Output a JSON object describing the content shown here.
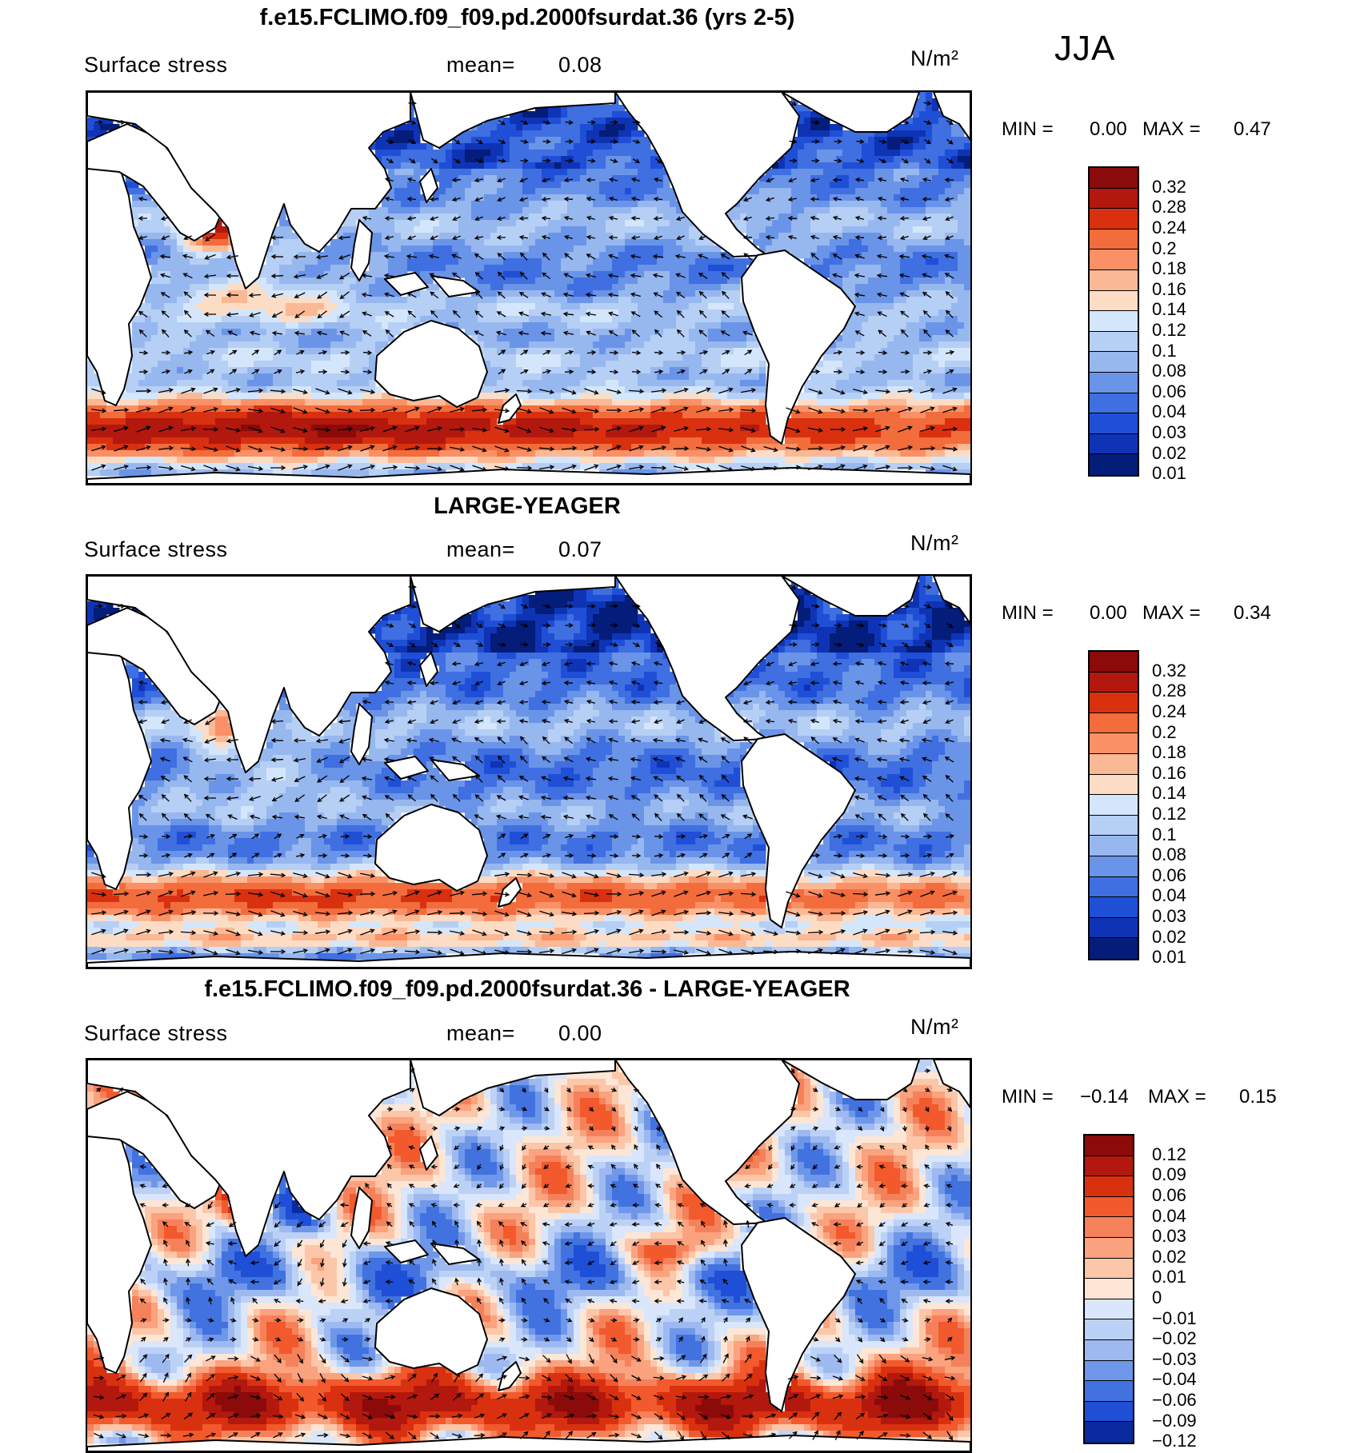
{
  "season": "JJA",
  "panels": [
    {
      "title": "f.e15.FCLIMO.f09_f09.pd.2000fsurdat.36 (yrs 2-5)",
      "field": "Surface stress",
      "mean_label": "mean=",
      "mean_value": "0.08",
      "units": "N/m²",
      "min_label": "MIN =",
      "min_value": "0.00",
      "max_label": "MAX =",
      "max_value": "0.47",
      "colorbar_labels": [
        "0.32",
        "0.28",
        "0.24",
        "0.2",
        "0.18",
        "0.16",
        "0.14",
        "0.12",
        "0.1",
        "0.08",
        "0.06",
        "0.04",
        "0.03",
        "0.02",
        "0.01"
      ],
      "colors": [
        "#8b0a0a",
        "#b2180e",
        "#d93110",
        "#f26c3c",
        "#fa9066",
        "#fbb894",
        "#fddcc5",
        "#d4e6fb",
        "#b6cff5",
        "#97b7ef",
        "#6a94e8",
        "#3f6fe0",
        "#1f4fd6",
        "#0e34b5",
        "#041c7a"
      ],
      "pattern": "mean"
    },
    {
      "title": "LARGE-YEAGER",
      "field": "Surface stress",
      "mean_label": "mean=",
      "mean_value": "0.07",
      "units": "N/m²",
      "min_label": "MIN =",
      "min_value": "0.00",
      "max_label": "MAX =",
      "max_value": "0.34",
      "colorbar_labels": [
        "0.32",
        "0.28",
        "0.24",
        "0.2",
        "0.18",
        "0.16",
        "0.14",
        "0.12",
        "0.1",
        "0.08",
        "0.06",
        "0.04",
        "0.03",
        "0.02",
        "0.01"
      ],
      "colors": [
        "#8b0a0a",
        "#b2180e",
        "#d93110",
        "#f26c3c",
        "#fa9066",
        "#fbb894",
        "#fddcc5",
        "#d4e6fb",
        "#b6cff5",
        "#97b7ef",
        "#6a94e8",
        "#3f6fe0",
        "#1f4fd6",
        "#0e34b5",
        "#041c7a"
      ],
      "pattern": "obs"
    },
    {
      "title": "f.e15.FCLIMO.f09_f09.pd.2000fsurdat.36 - LARGE-YEAGER",
      "field": "Surface stress",
      "mean_label": "mean=",
      "mean_value": "0.00",
      "units": "N/m²",
      "min_label": "MIN =",
      "min_value": "−0.14",
      "max_label": "MAX =",
      "max_value": "0.15",
      "colorbar_labels": [
        "0.12",
        "0.09",
        "0.06",
        "0.04",
        "0.03",
        "0.02",
        "0.01",
        "0",
        "−0.01",
        "−0.02",
        "−0.03",
        "−0.04",
        "−0.06",
        "−0.09",
        "−0.12"
      ],
      "colors": [
        "#8b0a0a",
        "#b2180e",
        "#d93110",
        "#f2592c",
        "#f5815a",
        "#fba27e",
        "#fcc6a8",
        "#fde6d6",
        "#d9e6fb",
        "#bcd1f6",
        "#9db9f0",
        "#6f97e9",
        "#4272e0",
        "#1f4fd6",
        "#0a2aa0"
      ],
      "pattern": "diff"
    }
  ]
}
